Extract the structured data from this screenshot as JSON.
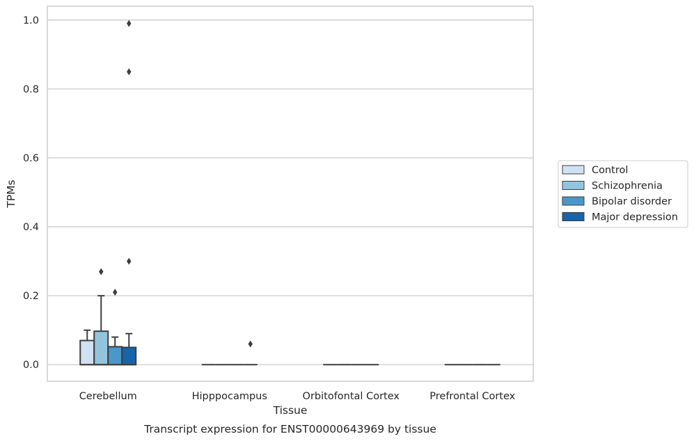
{
  "caption": "Transcript expression for ENST00000643969 by tissue",
  "chart_data": {
    "type": "box",
    "title": "",
    "xlabel": "Tissue",
    "ylabel": "TPMs",
    "ylim": [
      -0.048,
      1.04
    ],
    "yticks": [
      "0.0",
      "0.2",
      "0.4",
      "0.6",
      "0.8",
      "1.0"
    ],
    "grid": true,
    "legend_position": "right",
    "categories": [
      "Cerebellum",
      "Hipppocampus",
      "Orbitofontal Cortex",
      "Prefrontal Cortex"
    ],
    "series": [
      {
        "name": "Control",
        "color": "#cfe1f2",
        "boxes": [
          {
            "q1": 0.0,
            "median": 0.0,
            "q3": 0.07,
            "whisker_low": 0.0,
            "whisker_high": 0.1,
            "outliers": []
          },
          {
            "q1": 0.0,
            "median": 0.0,
            "q3": 0.0,
            "whisker_low": 0.0,
            "whisker_high": 0.0,
            "outliers": []
          },
          {
            "q1": 0.0,
            "median": 0.0,
            "q3": 0.0,
            "whisker_low": 0.0,
            "whisker_high": 0.0,
            "outliers": []
          },
          {
            "q1": 0.0,
            "median": 0.0,
            "q3": 0.0,
            "whisker_low": 0.0,
            "whisker_high": 0.0,
            "outliers": []
          }
        ]
      },
      {
        "name": "Schizophrenia",
        "color": "#93c4de",
        "boxes": [
          {
            "q1": 0.0,
            "median": 0.0,
            "q3": 0.097,
            "whisker_low": 0.0,
            "whisker_high": 0.2,
            "outliers": [
              0.27
            ]
          },
          {
            "q1": 0.0,
            "median": 0.0,
            "q3": 0.0,
            "whisker_low": 0.0,
            "whisker_high": 0.0,
            "outliers": []
          },
          {
            "q1": 0.0,
            "median": 0.0,
            "q3": 0.0,
            "whisker_low": 0.0,
            "whisker_high": 0.0,
            "outliers": []
          },
          {
            "q1": 0.0,
            "median": 0.0,
            "q3": 0.0,
            "whisker_low": 0.0,
            "whisker_high": 0.0,
            "outliers": []
          }
        ]
      },
      {
        "name": "Bipolar disorder",
        "color": "#4a98c9",
        "boxes": [
          {
            "q1": 0.0,
            "median": 0.0,
            "q3": 0.052,
            "whisker_low": 0.0,
            "whisker_high": 0.08,
            "outliers": [
              0.21
            ]
          },
          {
            "q1": 0.0,
            "median": 0.0,
            "q3": 0.0,
            "whisker_low": 0.0,
            "whisker_high": 0.0,
            "outliers": []
          },
          {
            "q1": 0.0,
            "median": 0.0,
            "q3": 0.0,
            "whisker_low": 0.0,
            "whisker_high": 0.0,
            "outliers": []
          },
          {
            "q1": 0.0,
            "median": 0.0,
            "q3": 0.0,
            "whisker_low": 0.0,
            "whisker_high": 0.0,
            "outliers": []
          }
        ]
      },
      {
        "name": "Major depression",
        "color": "#1764ab",
        "boxes": [
          {
            "q1": 0.0,
            "median": 0.0,
            "q3": 0.05,
            "whisker_low": 0.0,
            "whisker_high": 0.09,
            "outliers": [
              0.3,
              0.85,
              0.99
            ]
          },
          {
            "q1": 0.0,
            "median": 0.0,
            "q3": 0.0,
            "whisker_low": 0.0,
            "whisker_high": 0.0,
            "outliers": [
              0.06
            ]
          },
          {
            "q1": 0.0,
            "median": 0.0,
            "q3": 0.0,
            "whisker_low": 0.0,
            "whisker_high": 0.0,
            "outliers": []
          },
          {
            "q1": 0.0,
            "median": 0.0,
            "q3": 0.0,
            "whisker_low": 0.0,
            "whisker_high": 0.0,
            "outliers": []
          }
        ]
      }
    ]
  }
}
